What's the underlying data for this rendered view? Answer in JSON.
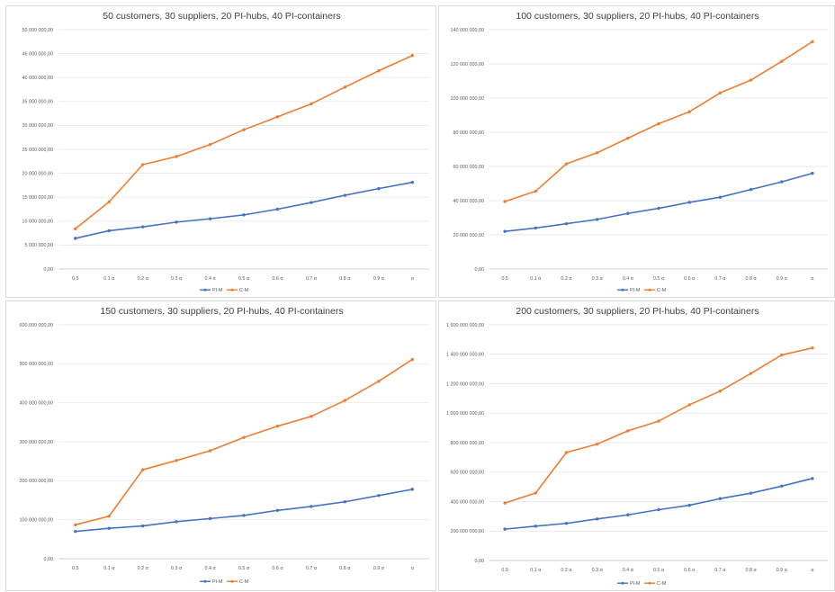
{
  "colors": {
    "pi_m": "#4472c4",
    "c_m": "#ed7d31"
  },
  "chart_data": [
    {
      "type": "line",
      "title": "50 customers, 30 suppliers, 20 PI-hubs, 40 PI-containers",
      "categories": [
        "0.5",
        "0.1 α",
        "0.2  α",
        "0.3 α",
        "0.4 α",
        "0.5  α",
        "0.6 α",
        "0.7 α",
        "0.8 α",
        "0.9 α",
        "α"
      ],
      "yticks": [
        "0,00",
        "5 000 000,00",
        "10 000 000,00",
        "15 000 000,00",
        "20 000 000,00",
        "25 000 000,00",
        "30 000 000,00",
        "35 000 000,00",
        "40 000 000,00",
        "45 000 000,00",
        "50 000 000,00"
      ],
      "ylim": [
        0,
        50000000
      ],
      "series": [
        {
          "name": "PI-M",
          "values": [
            6400000,
            8000000,
            8800000,
            9800000,
            10500000,
            11300000,
            12500000,
            13900000,
            15400000,
            16800000,
            18100000
          ]
        },
        {
          "name": "C-M",
          "values": [
            8400000,
            14000000,
            21800000,
            23500000,
            26000000,
            29100000,
            31800000,
            34500000,
            38000000,
            41400000,
            44600000
          ]
        }
      ],
      "legend": "bottom"
    },
    {
      "type": "line",
      "title": "100 customers, 30 suppliers, 20 PI-hubs, 40 PI-containers",
      "categories": [
        "0.5",
        "0.1 α",
        "0.2  α",
        "0.3 α",
        "0.4 α",
        "0.5  α",
        "0.6 α",
        "0.7 α",
        "0.8 α",
        "0.9 α",
        "α"
      ],
      "yticks": [
        "0,00",
        "20 000 000,00",
        "40 000 000,00",
        "60 000 000,00",
        "80 000 000,00",
        "100 000 000,00",
        "120 000 000,00",
        "140 000 000,00"
      ],
      "ylim": [
        0,
        140000000
      ],
      "series": [
        {
          "name": "PI-M",
          "values": [
            22000000,
            24000000,
            26500000,
            29000000,
            32500000,
            35500000,
            39000000,
            42000000,
            46500000,
            51000000,
            56000000
          ]
        },
        {
          "name": "C-M",
          "values": [
            39500000,
            45500000,
            61500000,
            68000000,
            76500000,
            85000000,
            92000000,
            103000000,
            110500000,
            121500000,
            133000000
          ]
        }
      ],
      "legend": "bottom"
    },
    {
      "type": "line",
      "title": "150 customers, 30 suppliers, 20 PI-hubs, 40 PI-containers",
      "categories": [
        "0.5",
        "0.1 α",
        "0.2  α",
        "0.3 α",
        "0.4 α",
        "0.5  α",
        "0.6 α",
        "0.7 α",
        "0.8 α",
        "0.9 α",
        "α"
      ],
      "yticks": [
        "0,00",
        "100 000 000,00",
        "200 000 000,00",
        "300 000 000,00",
        "400 000 000,00",
        "500 000 000,00",
        "600 000 000,00"
      ],
      "ylim": [
        0,
        600000000
      ],
      "series": [
        {
          "name": "PI-M",
          "values": [
            70000000,
            78000000,
            84000000,
            95000000,
            103000000,
            111000000,
            124000000,
            134000000,
            146000000,
            162000000,
            178000000
          ]
        },
        {
          "name": "C-M",
          "values": [
            87000000,
            109000000,
            228000000,
            252000000,
            277000000,
            311000000,
            340000000,
            365000000,
            406000000,
            455000000,
            511000000
          ]
        }
      ],
      "legend": "bottom"
    },
    {
      "type": "line",
      "title": "200 customers, 30 suppliers, 20 PI-hubs, 40 PI-containers",
      "categories": [
        "0.5",
        "0.1 α",
        "0.2  α",
        "0.3 α",
        "0.4 α",
        "0.5  α",
        "0.6 α",
        "0.7 α",
        "0.8 α",
        "0.9 α",
        "α"
      ],
      "yticks": [
        "0,00",
        "200 000 000,00",
        "400 000 000,00",
        "600 000 000,00",
        "800 000 000,00",
        "1 000 000 000,00",
        "1 200 000 000,00",
        "1 400 000 000,00",
        "1 600 000 000,00"
      ],
      "ylim": [
        0,
        1600000000
      ],
      "series": [
        {
          "name": "PI-M",
          "values": [
            213000000,
            233000000,
            252000000,
            282000000,
            310000000,
            345000000,
            375000000,
            420000000,
            457000000,
            505000000,
            557000000
          ]
        },
        {
          "name": "C-M",
          "values": [
            390000000,
            458000000,
            733000000,
            790000000,
            880000000,
            946000000,
            1057000000,
            1150000000,
            1270000000,
            1395000000,
            1443000000
          ]
        }
      ],
      "legend": "bottom"
    }
  ]
}
